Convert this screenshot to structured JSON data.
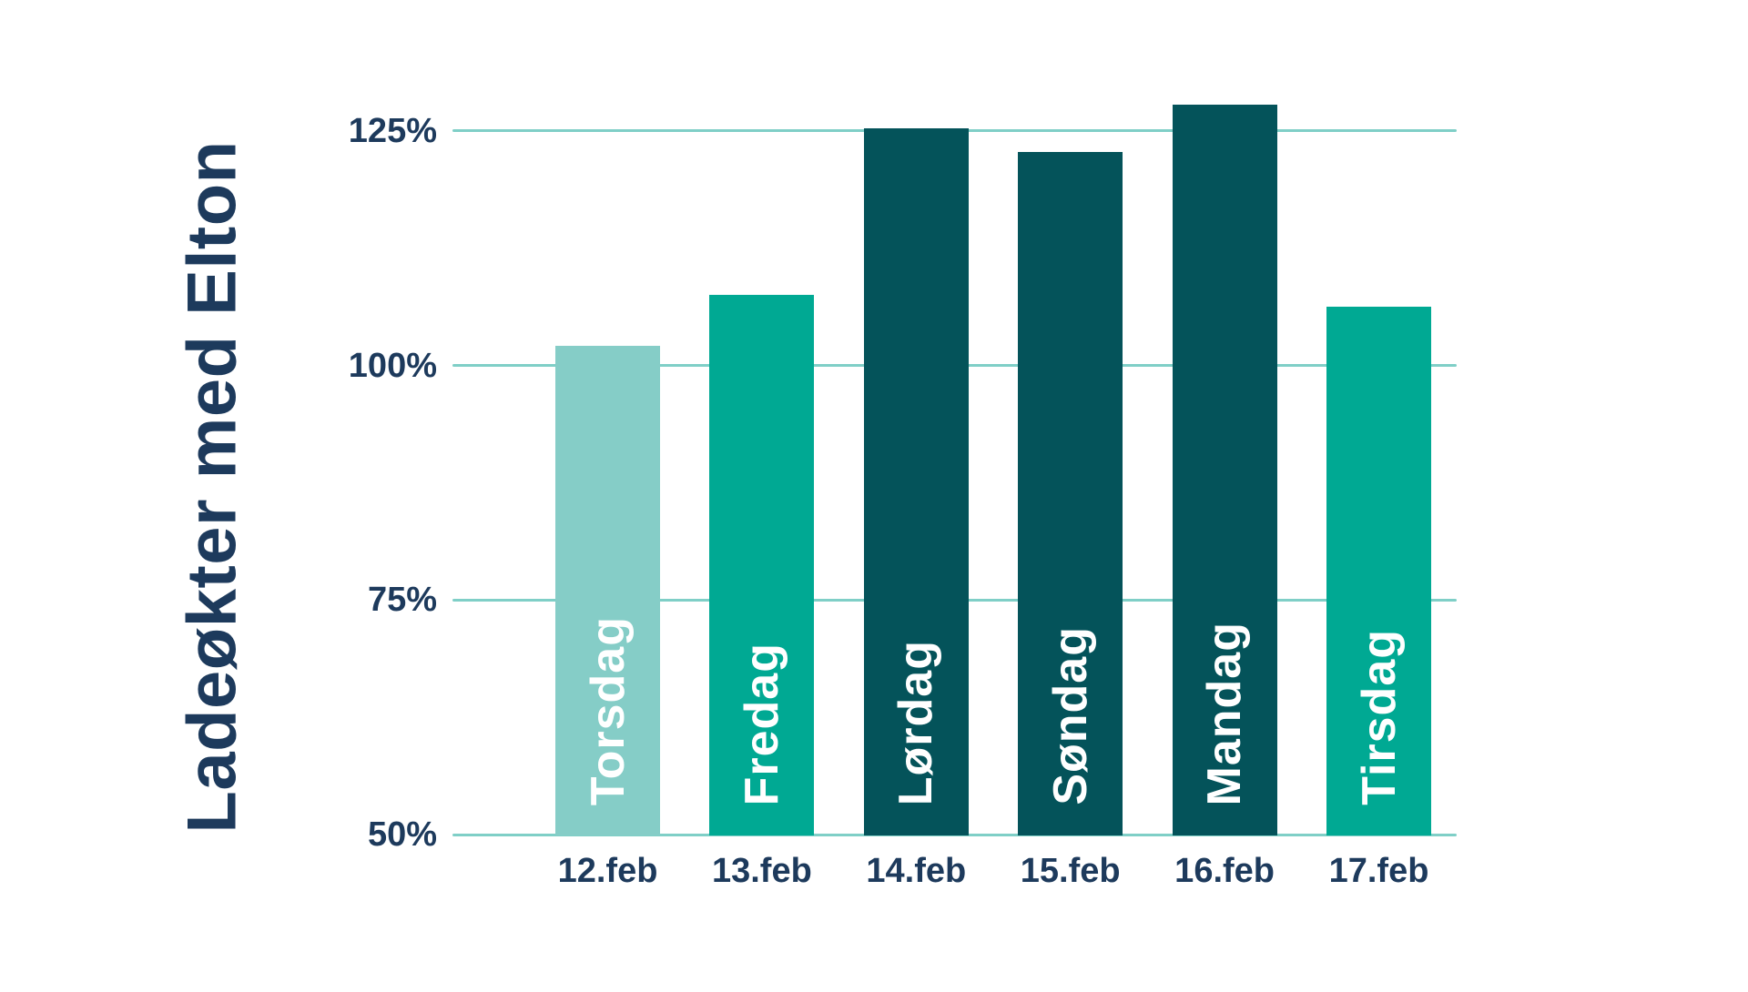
{
  "chart_data": {
    "type": "bar",
    "title": "Ladeøkter med Elton",
    "categories": [
      "12.feb",
      "13.feb",
      "14.feb",
      "15.feb",
      "16.feb",
      "17.feb"
    ],
    "bar_labels": [
      "Torsdag",
      "Fredag",
      "Lørdag",
      "Søndag",
      "Mandag",
      "Tirsdag"
    ],
    "values": [
      102.1,
      107.5,
      125.3,
      122.8,
      127.8,
      106.3
    ],
    "unit": "%",
    "xlabel": "",
    "ylabel": "",
    "ylim": [
      50,
      130
    ],
    "yticks": [
      50,
      75,
      100,
      125
    ],
    "ytick_labels": [
      "50%",
      "75%",
      "100%",
      "125%"
    ],
    "grid": true,
    "legend": false,
    "colors": {
      "bar_fills": [
        "#85cdc7",
        "#00a993",
        "#04535a",
        "#04535a",
        "#04535a",
        "#00a993"
      ],
      "gridline": "#7fcfc7",
      "axis_text": "#1d3a5c",
      "bar_label_text": "#ffffff",
      "background": "#ffffff"
    }
  }
}
